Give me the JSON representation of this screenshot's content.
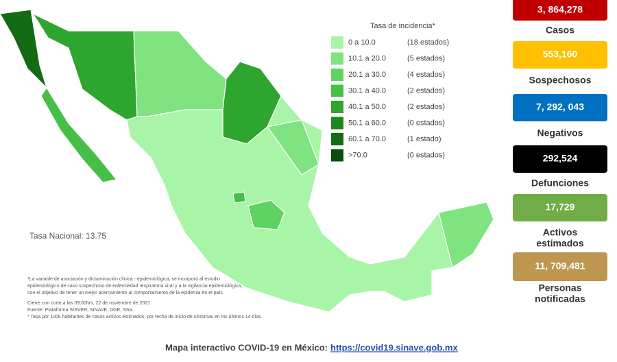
{
  "legend": {
    "title": "Tasa de incidencia*",
    "items": [
      {
        "range": "0 a 10.0",
        "count": "(18 estados)",
        "color": "#a8f5a8"
      },
      {
        "range": "10.1 a 20.0",
        "count": "(5 estados)",
        "color": "#7fe47f"
      },
      {
        "range": "20.1 a 30.0",
        "count": "(4 estados)",
        "color": "#5fd35f"
      },
      {
        "range": "30.1 a 40.0",
        "count": "(2 estados)",
        "color": "#45bf45"
      },
      {
        "range": "40.1 a 50.0",
        "count": "(2 estados)",
        "color": "#2ea52e"
      },
      {
        "range": "50.1 a 60.0",
        "count": "(0 estados)",
        "color": "#1e861e"
      },
      {
        "range": "60.1 a 70.0",
        "count": "(1 estado)",
        "color": "#136b13"
      },
      {
        "range": ">70.0",
        "count": "(0 estados)",
        "color": "#0b4f0b"
      }
    ]
  },
  "national_rate": "Tasa Nacional: 13.75",
  "notes": [
    "*La variable de asociación y dictaminación clínica - epidemiológica, se incorporó al estudio",
    "epidemiológico de caso sospechoso de enfermedad respiratoria viral y a la vigilancia epidemiológica,",
    "con el objetivo de tener un mejor acercamiento al comportamiento de la epidemia en el país.",
    "Cierre con corte a las 09:00hrs, 22 de noviembre de 2021",
    "Fuente: Plataforma SISVER, SINAVE, DGE, SSa.",
    "* Tasa por 100k habitantes de casos activos estimados, por fecha de inicio de síntomas en los últimos 14 días."
  ],
  "stats": [
    {
      "value": "3, 864,278",
      "label": [
        "Casos"
      ],
      "color": "#c00000"
    },
    {
      "value": "553,160",
      "label": [
        "Sospechosos"
      ],
      "color": "#ffc000"
    },
    {
      "value": "7, 292, 043",
      "label": [
        "Negativos"
      ],
      "color": "#0070c0"
    },
    {
      "value": "292,524",
      "label": [
        "Defunciones"
      ],
      "color": "#000000"
    },
    {
      "value": "17,729",
      "label": [
        "Activos",
        "estimados"
      ],
      "color": "#70ad47"
    },
    {
      "value": "11, 709,481",
      "label": [
        "Personas",
        "notificadas"
      ],
      "color": "#bf9650"
    }
  ],
  "footer": {
    "text": "Mapa interactivo COVID-19 en México:",
    "link": "https://covid19.sinave.gob.mx"
  }
}
